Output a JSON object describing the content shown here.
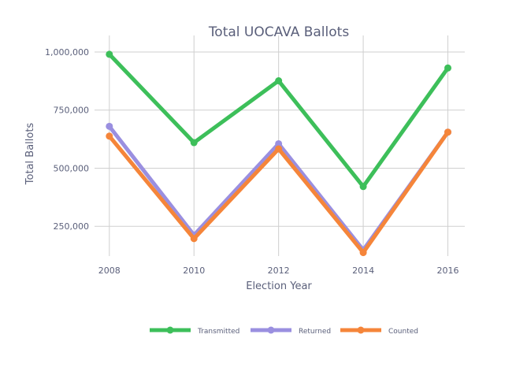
{
  "chart_data": {
    "type": "line",
    "title": "Total UOCAVA Ballots",
    "xlabel": "Election Year",
    "ylabel": "Total Ballots",
    "x": [
      2008,
      2010,
      2012,
      2014,
      2016
    ],
    "x_tick_labels": [
      "2008",
      "2010",
      "2012",
      "2014",
      "2016"
    ],
    "y_ticks": [
      250000,
      500000,
      750000,
      1000000
    ],
    "y_tick_labels": [
      "250,000",
      "500,000",
      "750,000",
      "1,000,000"
    ],
    "xlim": [
      2007.65,
      2016.4
    ],
    "ylim": [
      122000,
      1071000
    ],
    "grid": true,
    "legend_position": "bottom",
    "series": [
      {
        "name": "Transmitted",
        "color": "#3dbf5a",
        "values": [
          990000,
          610000,
          876000,
          421000,
          931000
        ]
      },
      {
        "name": "Returned",
        "color": "#9a8fe0",
        "values": [
          680000,
          212000,
          605000,
          148000,
          655000
        ]
      },
      {
        "name": "Counted",
        "color": "#f5853a",
        "values": [
          638000,
          197000,
          583000,
          137000,
          655000
        ]
      }
    ]
  }
}
